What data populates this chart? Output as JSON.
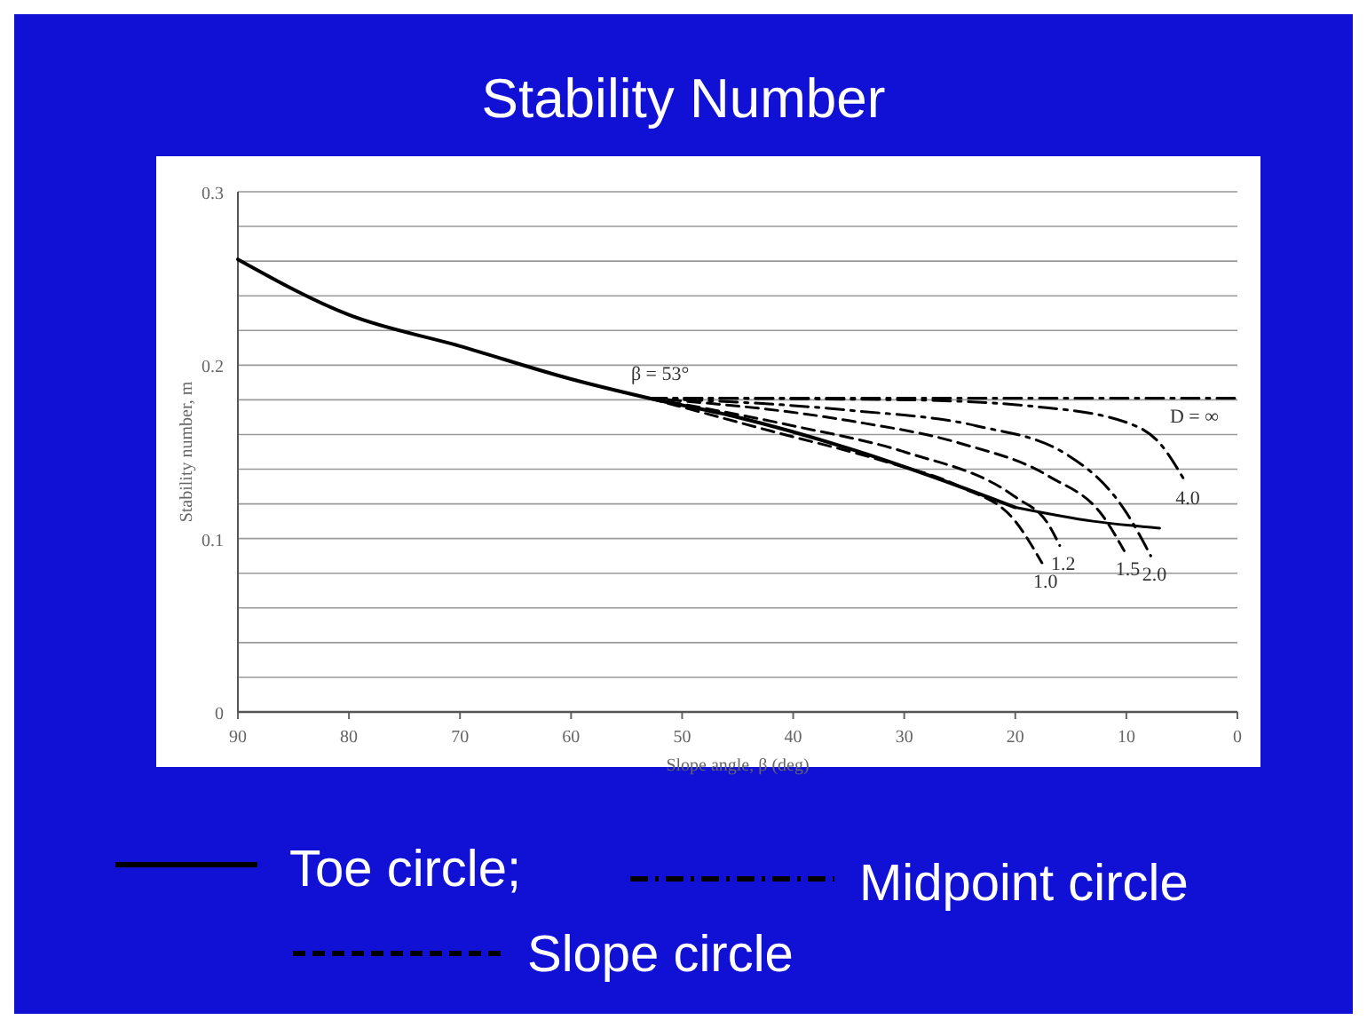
{
  "chart_data": {
    "type": "line",
    "title": "Stability Number",
    "xlabel": "Slope angle, β (deg)",
    "ylabel": "Stability number, m",
    "xlim": [
      90,
      0
    ],
    "xticks": [
      90,
      80,
      70,
      60,
      50,
      40,
      30,
      20,
      10,
      0
    ],
    "ylim": [
      0,
      0.3
    ],
    "yticks": [
      0,
      {
        "value": 0.02,
        "label": null
      },
      {
        "value": 0.04,
        "label": null
      },
      {
        "value": 0.06,
        "label": null
      },
      {
        "value": 0.08,
        "label": null
      },
      0.1,
      {
        "value": 0.12,
        "label": null
      },
      {
        "value": 0.14,
        "label": null
      },
      {
        "value": 0.16,
        "label": null
      },
      {
        "value": 0.18,
        "label": null
      },
      0.2,
      {
        "value": 0.22,
        "label": null
      },
      {
        "value": 0.24,
        "label": null
      },
      {
        "value": 0.26,
        "label": null
      },
      {
        "value": 0.28,
        "label": null
      },
      0.3
    ],
    "grid": "y",
    "legend": "bottom",
    "marker": "none",
    "series": [
      {
        "name": "Toe circle;",
        "color": "#000000",
        "line_style": "solid",
        "x": [
          90,
          80,
          70,
          60,
          53,
          45,
          35,
          25,
          20
        ],
        "values": [
          0.261,
          0.229,
          0.211,
          0.192,
          0.181,
          0.17,
          0.152,
          0.13,
          0.118
        ]
      },
      {
        "color": "#000000",
        "line_style": "solid",
        "x": [
          20,
          13,
          7
        ],
        "values": [
          0.118,
          0.11,
          0.106
        ]
      },
      {
        "name": "Midpoint circle",
        "color": "#000000",
        "line_style": "dashdot",
        "x": [
          53,
          0
        ],
        "values": [
          0.181,
          0.181
        ]
      },
      {
        "color": "#000000",
        "line_style": "dashdot",
        "x": [
          53,
          30,
          18,
          10,
          7,
          4.8
        ],
        "values": [
          0.181,
          0.18,
          0.176,
          0.167,
          0.155,
          0.134
        ]
      },
      {
        "color": "#000000",
        "line_style": "dashdot",
        "x": [
          53,
          35,
          23.5,
          15.5,
          10,
          7.8
        ],
        "values": [
          0.181,
          0.174,
          0.165,
          0.149,
          0.115,
          0.09
        ]
      },
      {
        "color": "#000000",
        "line_style": "dashed",
        "x": [
          53,
          35,
          25,
          17,
          12,
          10.2
        ],
        "values": [
          0.181,
          0.168,
          0.155,
          0.136,
          0.112,
          0.093
        ]
      },
      {
        "color": "#000000",
        "line_style": "dashed",
        "x": [
          53,
          40,
          30,
          20,
          17,
          16
        ],
        "values": [
          0.181,
          0.165,
          0.15,
          0.124,
          0.108,
          0.096
        ]
      },
      {
        "name": "Slope circle",
        "color": "#000000",
        "line_style": "dashed",
        "x": [
          53,
          42,
          31.5,
          25,
          20,
          17.6
        ],
        "values": [
          0.181,
          0.162,
          0.144,
          0.13,
          0.11,
          0.086
        ]
      }
    ],
    "annotations": [
      {
        "text": "β = 53°",
        "x": 53,
        "y": 0.181
      },
      {
        "text": "D = ∞",
        "x": 2,
        "y": 0.181
      },
      {
        "text": "4.0",
        "x": 4.8,
        "y": 0.134
      },
      {
        "text": "2.0",
        "x": 7.8,
        "y": 0.09
      },
      {
        "text": "1.5",
        "x": 10.2,
        "y": 0.093
      },
      {
        "text": "1.2",
        "x": 16,
        "y": 0.096
      },
      {
        "text": "1.0",
        "x": 17.6,
        "y": 0.086
      }
    ]
  }
}
